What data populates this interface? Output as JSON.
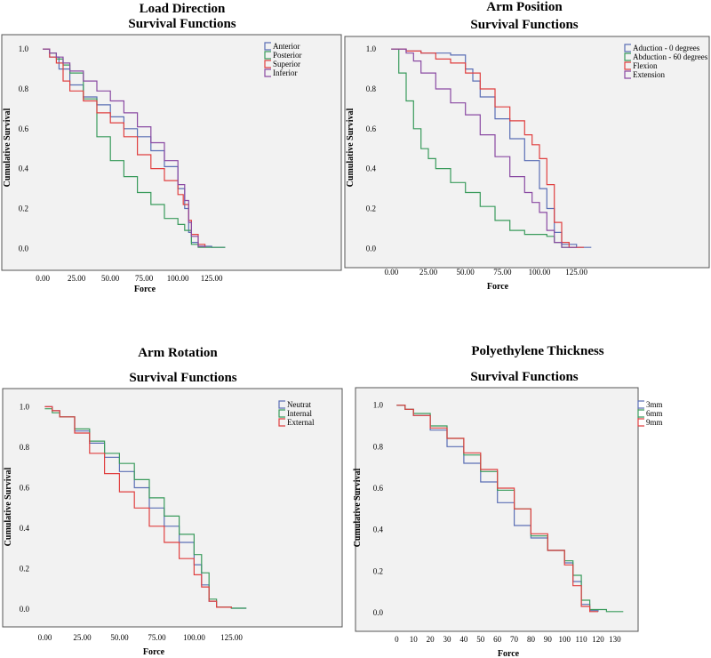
{
  "chart_data": [
    {
      "type": "line",
      "title": "Load Direction",
      "subtitle": "Survival Functions",
      "xlabel": "Force",
      "ylabel": "Cumulative Survival",
      "xticks": [
        "0.00",
        "25.00",
        "50.00",
        "75.00",
        "100.00",
        "125.00"
      ],
      "xtick_values": [
        0,
        25,
        50,
        75,
        100,
        125
      ],
      "yticks": [
        "0.0",
        "0.2",
        "0.4",
        "0.6",
        "0.8",
        "1.0"
      ],
      "xlim": [
        -8,
        142
      ],
      "ylim": [
        -0.03,
        1.05
      ],
      "grid": false,
      "legend": "top-right",
      "series": [
        {
          "name": "Anterior",
          "color": "#5b6fb5",
          "x": [
            0,
            5,
            12,
            20,
            30,
            40,
            50,
            60,
            70,
            80,
            90,
            100,
            105,
            108,
            110,
            115,
            125,
            135
          ],
          "y": [
            1.0,
            0.96,
            0.9,
            0.82,
            0.76,
            0.72,
            0.66,
            0.6,
            0.56,
            0.49,
            0.41,
            0.3,
            0.2,
            0.08,
            0.03,
            0.01,
            0.005,
            0.005
          ]
        },
        {
          "name": "Posterior",
          "color": "#3a9b5c",
          "x": [
            0,
            5,
            10,
            15,
            20,
            30,
            40,
            50,
            60,
            70,
            80,
            90,
            100,
            105,
            110,
            115,
            125,
            135
          ],
          "y": [
            1.0,
            0.98,
            0.95,
            0.92,
            0.88,
            0.75,
            0.56,
            0.44,
            0.36,
            0.28,
            0.22,
            0.15,
            0.12,
            0.09,
            0.02,
            0.005,
            0.005,
            0.005
          ]
        },
        {
          "name": "Superior",
          "color": "#e04040",
          "x": [
            0,
            5,
            10,
            15,
            20,
            30,
            40,
            50,
            60,
            70,
            80,
            90,
            100,
            104,
            108,
            110,
            115,
            120
          ],
          "y": [
            1.0,
            0.96,
            0.93,
            0.84,
            0.79,
            0.74,
            0.68,
            0.63,
            0.56,
            0.47,
            0.4,
            0.34,
            0.27,
            0.22,
            0.14,
            0.07,
            0.02,
            0.005
          ]
        },
        {
          "name": "Inferior",
          "color": "#8a4aa3",
          "x": [
            0,
            5,
            10,
            15,
            20,
            30,
            40,
            50,
            60,
            70,
            80,
            90,
            100,
            105,
            108,
            110,
            115,
            120
          ],
          "y": [
            1.0,
            0.98,
            0.96,
            0.93,
            0.89,
            0.84,
            0.79,
            0.74,
            0.68,
            0.61,
            0.53,
            0.44,
            0.32,
            0.24,
            0.13,
            0.06,
            0.01,
            0.005
          ]
        }
      ]
    },
    {
      "type": "line",
      "title": "Arm Position",
      "subtitle": "Survival Functions",
      "xlabel": "Force",
      "ylabel": "Cumulative Survival",
      "xticks": [
        "0.00",
        "25.00",
        "50.00",
        "75.00",
        "100.00",
        "125.00"
      ],
      "xtick_values": [
        0,
        25,
        50,
        75,
        100,
        125
      ],
      "yticks": [
        "0.0",
        "0.2",
        "0.4",
        "0.6",
        "0.8",
        "1.0"
      ],
      "xlim": [
        -8,
        142
      ],
      "ylim": [
        -0.03,
        1.05
      ],
      "grid": false,
      "legend": "top-right",
      "series": [
        {
          "name": "Aduction - 0 degrees",
          "color": "#5b6fb5",
          "x": [
            0,
            10,
            20,
            30,
            40,
            50,
            55,
            60,
            70,
            80,
            90,
            100,
            105,
            110,
            115,
            125,
            135
          ],
          "y": [
            1.0,
            0.99,
            0.98,
            0.98,
            0.97,
            0.9,
            0.84,
            0.76,
            0.65,
            0.55,
            0.44,
            0.3,
            0.2,
            0.08,
            0.02,
            0.005,
            0.005
          ]
        },
        {
          "name": "Abduction - 60 degrees",
          "color": "#3a9b5c",
          "x": [
            0,
            5,
            10,
            15,
            20,
            25,
            30,
            40,
            50,
            60,
            70,
            80,
            90,
            100,
            105,
            110,
            115,
            125
          ],
          "y": [
            1.0,
            0.88,
            0.74,
            0.6,
            0.5,
            0.45,
            0.4,
            0.33,
            0.28,
            0.21,
            0.14,
            0.09,
            0.07,
            0.07,
            0.06,
            0.03,
            0.005,
            0.005
          ]
        },
        {
          "name": "Flexion",
          "color": "#e04040",
          "x": [
            0,
            10,
            20,
            30,
            40,
            50,
            60,
            70,
            80,
            90,
            95,
            100,
            105,
            110,
            115,
            120,
            130
          ],
          "y": [
            1.0,
            0.99,
            0.98,
            0.95,
            0.93,
            0.88,
            0.8,
            0.71,
            0.64,
            0.57,
            0.52,
            0.45,
            0.32,
            0.13,
            0.03,
            0.005,
            0.005
          ]
        },
        {
          "name": "Extension",
          "color": "#8a4aa3",
          "x": [
            0,
            10,
            15,
            20,
            30,
            40,
            50,
            60,
            70,
            80,
            90,
            95,
            100,
            105,
            110,
            115,
            125
          ],
          "y": [
            1.0,
            0.98,
            0.94,
            0.88,
            0.8,
            0.73,
            0.67,
            0.57,
            0.46,
            0.36,
            0.28,
            0.23,
            0.18,
            0.09,
            0.03,
            0.005,
            0.005
          ]
        }
      ]
    },
    {
      "type": "line",
      "title": "Arm Rotation",
      "subtitle": "Survival Functions",
      "xlabel": "Force",
      "ylabel": "Cumulative Survival",
      "xticks": [
        "0.00",
        "25.00",
        "50.00",
        "75.00",
        "100.00",
        "125.00"
      ],
      "xtick_values": [
        0,
        25,
        50,
        75,
        100,
        125
      ],
      "yticks": [
        "0.0",
        "0.2",
        "0.4",
        "0.6",
        "0.8",
        "1.0"
      ],
      "xlim": [
        -8,
        142
      ],
      "ylim": [
        -0.03,
        1.05
      ],
      "grid": false,
      "legend": "top-right",
      "series": [
        {
          "name": "Neutrat",
          "color": "#5b6fb5",
          "x": [
            0,
            5,
            10,
            20,
            30,
            40,
            50,
            60,
            70,
            80,
            90,
            100,
            105,
            110,
            115,
            125,
            135
          ],
          "y": [
            1.0,
            0.98,
            0.95,
            0.88,
            0.82,
            0.75,
            0.68,
            0.6,
            0.5,
            0.41,
            0.33,
            0.22,
            0.12,
            0.04,
            0.01,
            0.005,
            0.005
          ]
        },
        {
          "name": "Internal",
          "color": "#3a9b5c",
          "x": [
            0,
            5,
            10,
            20,
            30,
            40,
            50,
            60,
            70,
            80,
            90,
            100,
            105,
            110,
            115,
            125,
            135
          ],
          "y": [
            0.99,
            0.97,
            0.95,
            0.89,
            0.83,
            0.77,
            0.72,
            0.64,
            0.55,
            0.46,
            0.37,
            0.27,
            0.18,
            0.05,
            0.01,
            0.005,
            0.005
          ]
        },
        {
          "name": "External",
          "color": "#e04040",
          "x": [
            0,
            5,
            10,
            20,
            30,
            40,
            50,
            60,
            70,
            80,
            90,
            100,
            105,
            110,
            115,
            125
          ],
          "y": [
            1.0,
            0.98,
            0.95,
            0.87,
            0.77,
            0.67,
            0.58,
            0.5,
            0.41,
            0.33,
            0.25,
            0.17,
            0.11,
            0.04,
            0.01,
            0.005
          ]
        }
      ]
    },
    {
      "type": "line",
      "title": "Polyethylene Thickness",
      "subtitle": "Survival Functions",
      "xlabel": "Force",
      "ylabel": "Cumulative Survival",
      "xticks": [
        "0",
        "10",
        "20",
        "30",
        "40",
        "50",
        "60",
        "70",
        "80",
        "90",
        "100",
        "110",
        "120",
        "130"
      ],
      "xtick_values": [
        0,
        10,
        20,
        30,
        40,
        50,
        60,
        70,
        80,
        90,
        100,
        110,
        120,
        130
      ],
      "yticks": [
        "0.0",
        "0.2",
        "0.4",
        "0.6",
        "0.8",
        "1.0"
      ],
      "xlim": [
        -6,
        138
      ],
      "ylim": [
        -0.03,
        1.05
      ],
      "grid": false,
      "legend": "top-right",
      "series": [
        {
          "name": "3mm",
          "color": "#5b6fb5",
          "x": [
            0,
            5,
            10,
            20,
            30,
            40,
            50,
            60,
            70,
            80,
            90,
            100,
            105,
            110,
            115,
            120
          ],
          "y": [
            1.0,
            0.98,
            0.95,
            0.88,
            0.8,
            0.72,
            0.63,
            0.53,
            0.42,
            0.36,
            0.3,
            0.24,
            0.15,
            0.04,
            0.01,
            0.005
          ]
        },
        {
          "name": "6mm",
          "color": "#3a9b5c",
          "x": [
            0,
            5,
            10,
            20,
            30,
            40,
            50,
            60,
            70,
            80,
            90,
            100,
            105,
            110,
            115,
            125,
            135
          ],
          "y": [
            1.0,
            0.98,
            0.96,
            0.9,
            0.84,
            0.76,
            0.68,
            0.59,
            0.5,
            0.37,
            0.3,
            0.25,
            0.18,
            0.06,
            0.015,
            0.005,
            0.005
          ]
        },
        {
          "name": "9mm",
          "color": "#e04040",
          "x": [
            0,
            5,
            10,
            20,
            30,
            40,
            50,
            60,
            70,
            80,
            90,
            100,
            105,
            110,
            115,
            120
          ],
          "y": [
            1.0,
            0.98,
            0.95,
            0.89,
            0.84,
            0.77,
            0.69,
            0.6,
            0.5,
            0.38,
            0.3,
            0.23,
            0.13,
            0.03,
            0.005,
            0.005
          ]
        }
      ]
    }
  ]
}
